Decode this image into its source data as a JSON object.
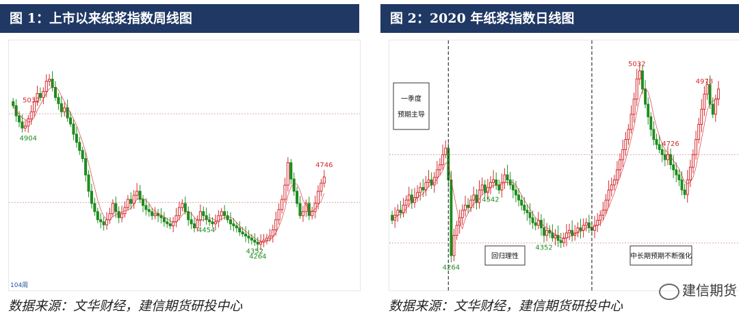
{
  "chart_data": [
    {
      "type": "candlestick",
      "title": "图 1：上市以来纸浆指数周线图",
      "source": "数据来源：文华财经，建信期货研投中心",
      "period_label": "104周",
      "colors": {
        "up": "#d4262b",
        "down": "#1e8c1e",
        "ma": "#d4262b",
        "title_bg": "#203864"
      },
      "reference_lines": [
        5000,
        4565
      ],
      "annotations": [
        {
          "label": "4904",
          "value": 4904,
          "color": "#1e8c1e",
          "position": "below"
        },
        {
          "label": "4454",
          "value": 4454,
          "color": "#1e8c1e",
          "position": "below"
        },
        {
          "label": "4746",
          "value": 4746,
          "color": "#d4262b",
          "position": "above"
        },
        {
          "label": "4264",
          "value": 4264,
          "color": "#1e8c1e",
          "position": "below"
        },
        {
          "label": "4352",
          "value": 4352,
          "color": "#1e8c1e",
          "position": "below"
        },
        {
          "label": "5032",
          "value": 5032,
          "color": "#d4262b",
          "position": "above"
        }
      ],
      "series_close": [
        5040,
        4990,
        4960,
        4930,
        4940,
        4975,
        5010,
        5060,
        5100,
        5080,
        5110,
        5160,
        5170,
        5130,
        5080,
        5050,
        5010,
        5030,
        4980,
        4950,
        4900,
        4860,
        4820,
        4780,
        4700,
        4620,
        4560,
        4520,
        4480,
        4470,
        4455,
        4480,
        4510,
        4560,
        4520,
        4490,
        4510,
        4540,
        4580,
        4560,
        4600,
        4620,
        4580,
        4550,
        4530,
        4520,
        4500,
        4510,
        4500,
        4490,
        4470,
        4460,
        4450,
        4470,
        4500,
        4540,
        4560,
        4520,
        4480,
        4460,
        4440,
        4480,
        4520,
        4500,
        4480,
        4470,
        4460,
        4470,
        4500,
        4520,
        4500,
        4480,
        4460,
        4450,
        4440,
        4420,
        4410,
        4400,
        4390,
        4380,
        4370,
        4360,
        4370,
        4380,
        4390,
        4400,
        4430,
        4480,
        4530,
        4580,
        4650,
        4760,
        4680,
        4620,
        4560,
        4500,
        4520,
        4560,
        4500,
        4520,
        4560,
        4620,
        4660,
        4690
      ]
    },
    {
      "type": "candlestick",
      "title": "图 2：2020 年纸浆指数日线图",
      "source": "数据来源：文华财经，建信期货研投中心",
      "colors": {
        "up": "#d4262b",
        "down": "#1e8c1e",
        "ma": "#d4262b",
        "title_bg": "#203864"
      },
      "reference_lines": [
        4700,
        4350
      ],
      "annotations": [
        {
          "label": "4726",
          "value": 4726,
          "color": "#d4262b",
          "position": "above"
        },
        {
          "label": "4264",
          "value": 4264,
          "color": "#1e8c1e",
          "position": "below"
        },
        {
          "label": "4352",
          "value": 4352,
          "color": "#1e8c1e",
          "position": "below"
        },
        {
          "label": "5032",
          "value": 5032,
          "color": "#d4262b",
          "position": "above"
        },
        {
          "label": "4542",
          "value": 4542,
          "color": "#1e8c1e",
          "position": "below"
        },
        {
          "label": "4978",
          "value": 4978,
          "color": "#d4262b",
          "position": "above"
        }
      ],
      "phase_boxes": [
        {
          "label_lines": [
            "一季度",
            "预期主导"
          ]
        },
        {
          "label_lines": [
            "回归理性"
          ]
        },
        {
          "label_lines": [
            "中长期预期不断强化"
          ]
        }
      ],
      "series_close": [
        4440,
        4460,
        4480,
        4470,
        4500,
        4520,
        4540,
        4510,
        4530,
        4550,
        4570,
        4560,
        4590,
        4600,
        4580,
        4610,
        4640,
        4660,
        4700,
        4726,
        4600,
        4300,
        4380,
        4420,
        4450,
        4480,
        4500,
        4490,
        4520,
        4540,
        4510,
        4560,
        4580,
        4550,
        4570,
        4590,
        4600,
        4580,
        4560,
        4590,
        4620,
        4600,
        4580,
        4560,
        4540,
        4520,
        4500,
        4480,
        4470,
        4450,
        4430,
        4420,
        4440,
        4410,
        4380,
        4400,
        4390,
        4370,
        4380,
        4360,
        4352,
        4370,
        4390,
        4400,
        4380,
        4390,
        4410,
        4400,
        4420,
        4430,
        4410,
        4400,
        4420,
        4440,
        4460,
        4480,
        4520,
        4560,
        4580,
        4600,
        4640,
        4680,
        4720,
        4760,
        4800,
        4860,
        4920,
        5000,
        5032,
        4960,
        4900,
        4850,
        4800,
        4760,
        4740,
        4720,
        4700,
        4680,
        4700,
        4660,
        4640,
        4620,
        4600,
        4560,
        4542,
        4600,
        4650,
        4700,
        4760,
        4820,
        4880,
        4940,
        4978,
        4900,
        4860,
        4920,
        4960
      ]
    }
  ],
  "watermark": "建信期货"
}
